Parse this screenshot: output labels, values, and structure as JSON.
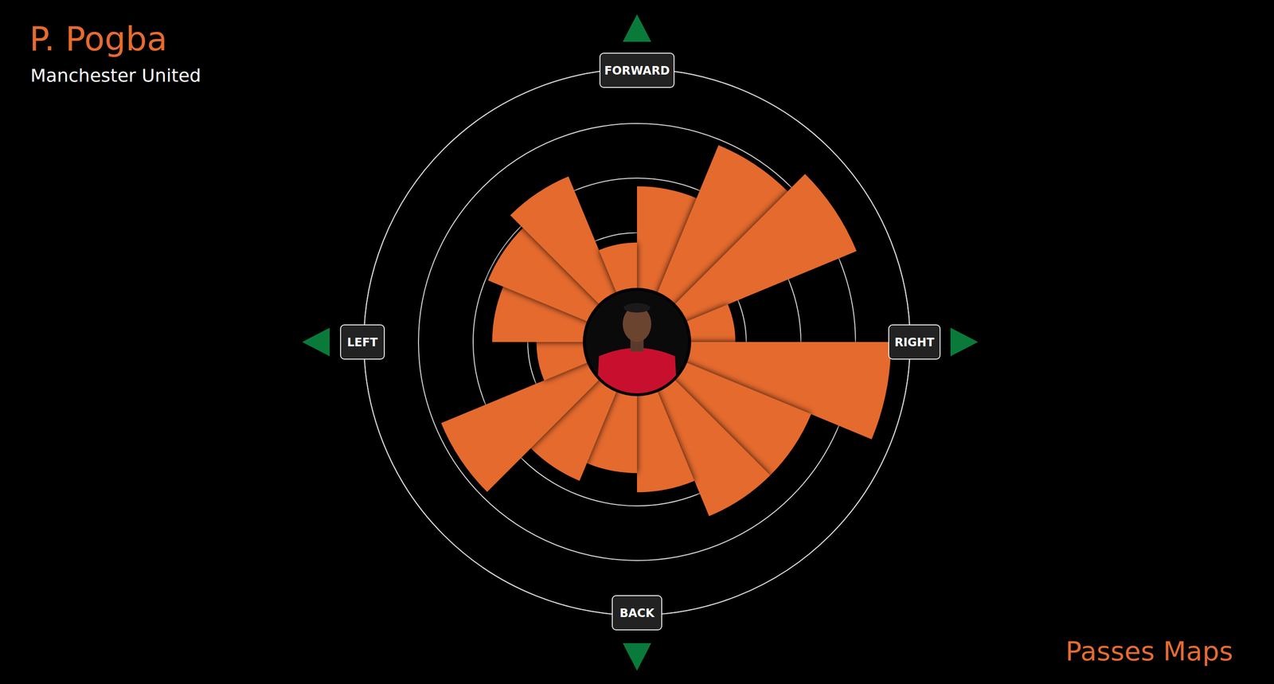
{
  "chart_data": {
    "type": "polar_bar",
    "title": "P. Pogba",
    "subtitle": "Manchester United",
    "footer": "Passes Maps",
    "direction_labels": [
      "FORWARD",
      "RIGHT",
      "BACK",
      "LEFT"
    ],
    "categories": [
      null,
      null,
      null,
      null,
      null,
      null,
      null,
      null,
      null,
      null,
      null,
      null,
      null,
      null,
      null,
      null
    ],
    "values": [
      2.85,
      3.9,
      4.35,
      1.8,
      4.65,
      3.45,
      3.45,
      2.75,
      2.4,
      2.75,
      3.88,
      1.84,
      2.65,
      2.95,
      3.28,
      1.82
    ],
    "color": "#e56b2f",
    "rlim": [
      0,
      5
    ],
    "rticks": [
      2,
      3,
      4,
      5
    ],
    "grid": true,
    "tick_labels": false
  }
}
